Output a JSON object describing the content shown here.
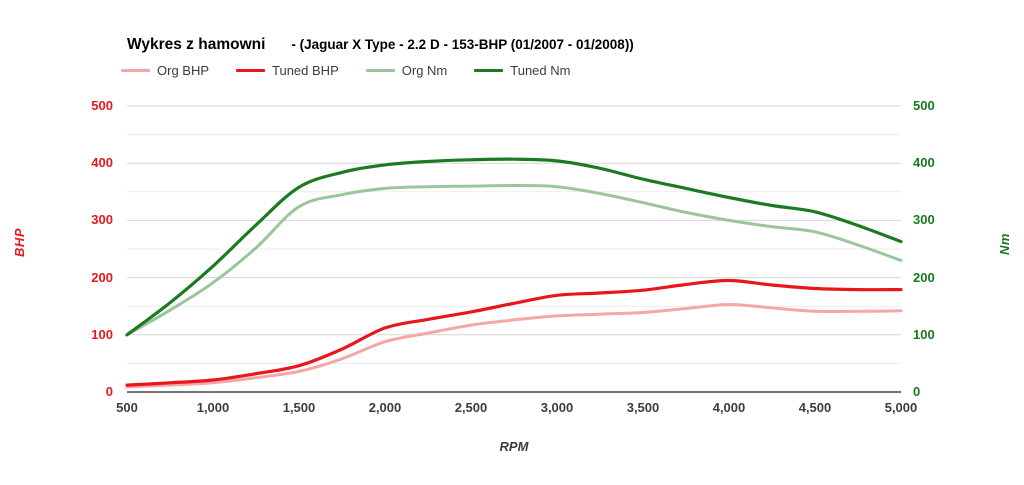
{
  "title": "Wykres z hamowni",
  "subtitle": "- (Jaguar X Type - 2.2 D - 153-BHP (01/2007 - 01/2008))",
  "axes": {
    "left": {
      "label": "BHP",
      "color": "#e8171d"
    },
    "right": {
      "label": "Nm",
      "color": "#157b1e"
    },
    "x": {
      "label": "RPM",
      "color": "#3d3d3d"
    }
  },
  "chart_data": {
    "type": "line",
    "title": "Wykres z hamowni - (Jaguar X Type - 2.2 D - 153-BHP (01/2007 - 01/2008))",
    "xlabel": "RPM",
    "ylabel_left": "BHP",
    "ylabel_right": "Nm",
    "xlim": [
      500,
      5000
    ],
    "ylim": [
      0,
      500
    ],
    "grid": "horizontal",
    "grid_minor_step": 50,
    "y_tick_step": 100,
    "y_ticks": [
      0,
      100,
      200,
      300,
      400,
      500
    ],
    "x_ticks": [
      500,
      1000,
      1500,
      2000,
      2500,
      3000,
      3500,
      4000,
      4500,
      5000
    ],
    "x_tick_labels": [
      "500",
      "1,000",
      "1,500",
      "2,000",
      "2,500",
      "3,000",
      "3,500",
      "4,000",
      "4,500",
      "5,000"
    ],
    "legend_position": "top",
    "x": [
      500,
      750,
      1000,
      1250,
      1500,
      1750,
      2000,
      2250,
      2500,
      2750,
      3000,
      3250,
      3500,
      3750,
      4000,
      4250,
      4500,
      4750,
      5000
    ],
    "series": [
      {
        "name": "Org BHP",
        "axis": "left",
        "color": "#f4a7a5",
        "line_width": 3,
        "values": [
          9,
          12,
          16,
          25,
          36,
          58,
          88,
          103,
          117,
          126,
          133,
          136,
          139,
          146,
          153,
          147,
          141,
          141,
          142
        ]
      },
      {
        "name": "Tuned BHP",
        "axis": "left",
        "color": "#e8171d",
        "line_width": 3.2,
        "values": [
          12,
          16,
          21,
          32,
          46,
          75,
          112,
          127,
          140,
          155,
          169,
          173,
          178,
          188,
          195,
          187,
          181,
          179,
          179
        ]
      },
      {
        "name": "Org Nm",
        "axis": "right",
        "color": "#9bc69b",
        "line_width": 3,
        "values": [
          100,
          143,
          191,
          252,
          324,
          345,
          356,
          359,
          360,
          361,
          359,
          347,
          331,
          314,
          300,
          289,
          280,
          257,
          230
        ]
      },
      {
        "name": "Tuned Nm",
        "axis": "right",
        "color": "#1c7b21",
        "line_width": 3.2,
        "values": [
          100,
          156,
          220,
          292,
          358,
          384,
          397,
          403,
          406,
          407,
          404,
          391,
          372,
          356,
          340,
          326,
          315,
          291,
          263
        ]
      }
    ],
    "colors": {
      "grid_major": "#d6d6d6",
      "grid_minor": "#ebebeb",
      "axis_line": "#757575"
    }
  }
}
